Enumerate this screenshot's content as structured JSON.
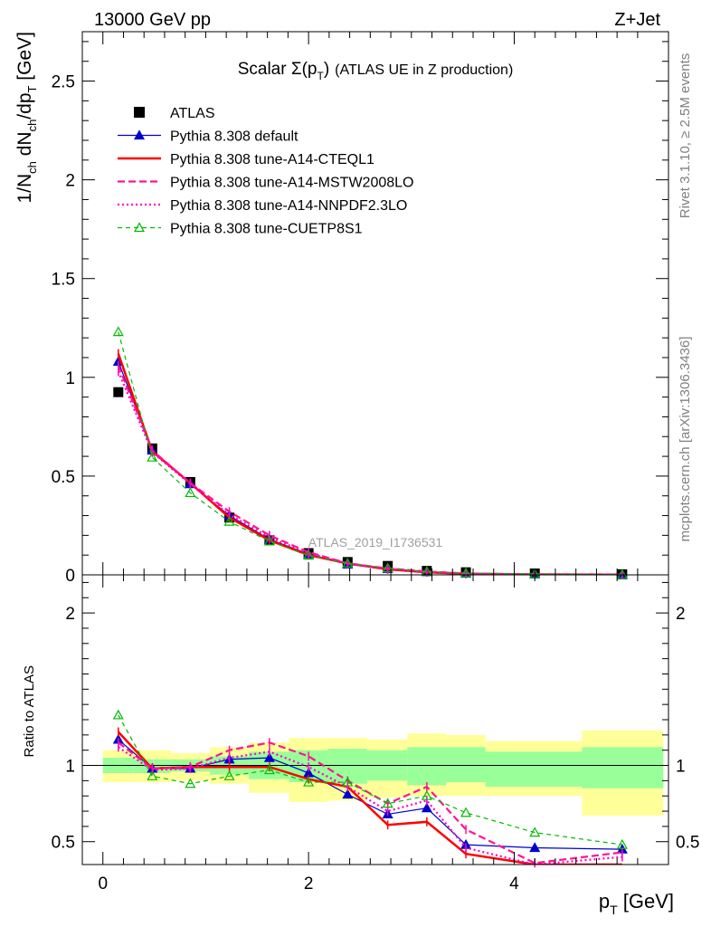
{
  "header": {
    "left": "13000 GeV pp",
    "right": "Z+Jet"
  },
  "side_labels": {
    "rivet": "Rivet 3.1.10, ≥ 2.5M events",
    "mcplots": "mcplots.cern.ch [arXiv:1306.3436]"
  },
  "watermark": "ATLAS_2019_I1736531",
  "chart_data": [
    {
      "type": "scatter",
      "title_main": "Scalar Σ(p",
      "title_sub": "T",
      "title_close": ")",
      "title_suffix": "(ATLAS UE in Z production)",
      "ylabel": "1/N_ch dN_ch/dp_T [GeV]",
      "ylabel_parts": {
        "a": "1/N",
        "a_sub": "ch",
        "b": " dN",
        "b_sub": "ch",
        "c": "/dp",
        "c_sub": "T",
        "d": " [GeV]"
      },
      "xlim": [
        -0.2,
        5.5
      ],
      "ylim": [
        0,
        2.75
      ],
      "yticks": [
        0,
        0.5,
        1,
        1.5,
        2,
        2.5
      ],
      "ytick_labels": [
        "0",
        "0.5",
        "1",
        "1.5",
        "2",
        "2.5"
      ],
      "legend_position": "top-left",
      "x": [
        0.15,
        0.48,
        0.85,
        1.23,
        1.62,
        2.0,
        2.38,
        2.77,
        3.15,
        3.53,
        4.2,
        5.05
      ],
      "series": [
        {
          "name": "ATLAS",
          "color": "#000000",
          "style": "data",
          "values": [
            0.925,
            0.64,
            0.47,
            0.29,
            0.175,
            0.11,
            0.065,
            0.045,
            0.02,
            0.013,
            0.007,
            0.003
          ]
        },
        {
          "name": "Pythia 8.308 default",
          "color": "#0000cc",
          "style": "solid",
          "marker": "triangle-filled",
          "values": [
            1.08,
            0.63,
            0.46,
            0.3,
            0.18,
            0.105,
            0.053,
            0.031,
            0.015,
            0.0065,
            0.0032,
            0.0013
          ]
        },
        {
          "name": "Pythia 8.308 tune-A14-CTEQL1",
          "color": "#ff0000",
          "style": "solid-thick",
          "values": [
            1.12,
            0.625,
            0.465,
            0.29,
            0.175,
            0.1,
            0.058,
            0.028,
            0.013,
            0.0055,
            0.0025,
            0.001
          ]
        },
        {
          "name": "Pythia 8.308 tune-A14-MSTW2008LO",
          "color": "#ff1493",
          "style": "dashed",
          "values": [
            1.06,
            0.63,
            0.465,
            0.32,
            0.2,
            0.115,
            0.058,
            0.033,
            0.017,
            0.0075,
            0.0026,
            0.0013
          ]
        },
        {
          "name": "Pythia 8.308 tune-A14-NNPDF2.3LO",
          "color": "#ff00cc",
          "style": "dotted",
          "values": [
            1.03,
            0.62,
            0.46,
            0.305,
            0.19,
            0.11,
            0.056,
            0.031,
            0.015,
            0.0058,
            0.002,
            0.0012
          ]
        },
        {
          "name": "Pythia 8.308 tune-CUETP8S1",
          "color": "#00bb00",
          "style": "dashed-thin",
          "marker": "triangle-open",
          "values": [
            1.23,
            0.595,
            0.415,
            0.27,
            0.17,
            0.098,
            0.058,
            0.034,
            0.016,
            0.009,
            0.0039,
            0.0014
          ]
        }
      ]
    },
    {
      "type": "line",
      "ylabel": "Ratio to ATLAS",
      "xlabel": "p_T [GeV]",
      "xlabel_parts": {
        "a": "p",
        "a_sub": "T",
        "b": " [GeV]"
      },
      "xlim": [
        -0.2,
        5.5
      ],
      "ylim": [
        0.35,
        2.25
      ],
      "xticks": [
        0,
        2,
        4
      ],
      "xtick_labels": [
        "0",
        "2",
        "4"
      ],
      "yticks": [
        0.5,
        1,
        2
      ],
      "ytick_labels": [
        "0.5",
        "1",
        "2"
      ],
      "reference_line": 1,
      "bin_edges": [
        0.0,
        0.3,
        0.66,
        1.04,
        1.42,
        1.81,
        2.19,
        2.57,
        2.96,
        3.34,
        3.72,
        4.66,
        5.45
      ],
      "band_yellow": [
        [
          0.89,
          1.1
        ],
        [
          0.89,
          1.1
        ],
        [
          0.9,
          1.08
        ],
        [
          0.88,
          1.12
        ],
        [
          0.82,
          1.15
        ],
        [
          0.76,
          1.18
        ],
        [
          0.77,
          1.18
        ],
        [
          0.79,
          1.17
        ],
        [
          0.8,
          1.21
        ],
        [
          0.8,
          1.2
        ],
        [
          0.8,
          1.16
        ],
        [
          0.67,
          1.23
        ]
      ],
      "band_green": [
        [
          0.95,
          1.05
        ],
        [
          0.95,
          1.04
        ],
        [
          0.96,
          1.04
        ],
        [
          0.94,
          1.06
        ],
        [
          0.91,
          1.09
        ],
        [
          0.89,
          1.1
        ],
        [
          0.88,
          1.11
        ],
        [
          0.9,
          1.1
        ],
        [
          0.87,
          1.12
        ],
        [
          0.89,
          1.12
        ],
        [
          0.86,
          1.09
        ],
        [
          0.85,
          1.12
        ]
      ],
      "x": [
        0.15,
        0.48,
        0.85,
        1.23,
        1.62,
        2.0,
        2.38,
        2.77,
        3.15,
        3.53,
        4.2,
        5.05
      ],
      "series": [
        {
          "name": "Pythia 8.308 default",
          "color": "#0000cc",
          "style": "solid",
          "marker": "triangle-filled",
          "values": [
            1.17,
            0.98,
            0.98,
            1.04,
            1.05,
            0.95,
            0.81,
            0.68,
            0.72,
            0.48,
            0.46,
            0.45
          ]
        },
        {
          "name": "Pythia 8.308 tune-A14-CTEQL1",
          "color": "#ff0000",
          "style": "solid-thick",
          "values": [
            1.22,
            0.98,
            0.99,
            0.99,
            0.99,
            0.91,
            0.86,
            0.61,
            0.63,
            0.42,
            0.32,
            0.3
          ]
        },
        {
          "name": "Pythia 8.308 tune-A14-MSTW2008LO",
          "color": "#ff1493",
          "style": "dashed",
          "values": [
            1.15,
            0.98,
            0.99,
            1.1,
            1.15,
            1.06,
            0.9,
            0.75,
            0.86,
            0.58,
            0.36,
            0.43
          ]
        },
        {
          "name": "Pythia 8.308 tune-A14-NNPDF2.3LO",
          "color": "#ff00cc",
          "style": "dotted",
          "values": [
            1.12,
            0.97,
            0.98,
            1.05,
            1.09,
            0.99,
            0.86,
            0.7,
            0.77,
            0.46,
            0.28,
            0.4
          ]
        },
        {
          "name": "Pythia 8.308 tune-CUETP8S1",
          "color": "#00bb00",
          "style": "dashed-thin",
          "marker": "triangle-open",
          "values": [
            1.33,
            0.93,
            0.88,
            0.93,
            0.97,
            0.89,
            0.89,
            0.75,
            0.8,
            0.69,
            0.56,
            0.48
          ]
        }
      ]
    }
  ]
}
